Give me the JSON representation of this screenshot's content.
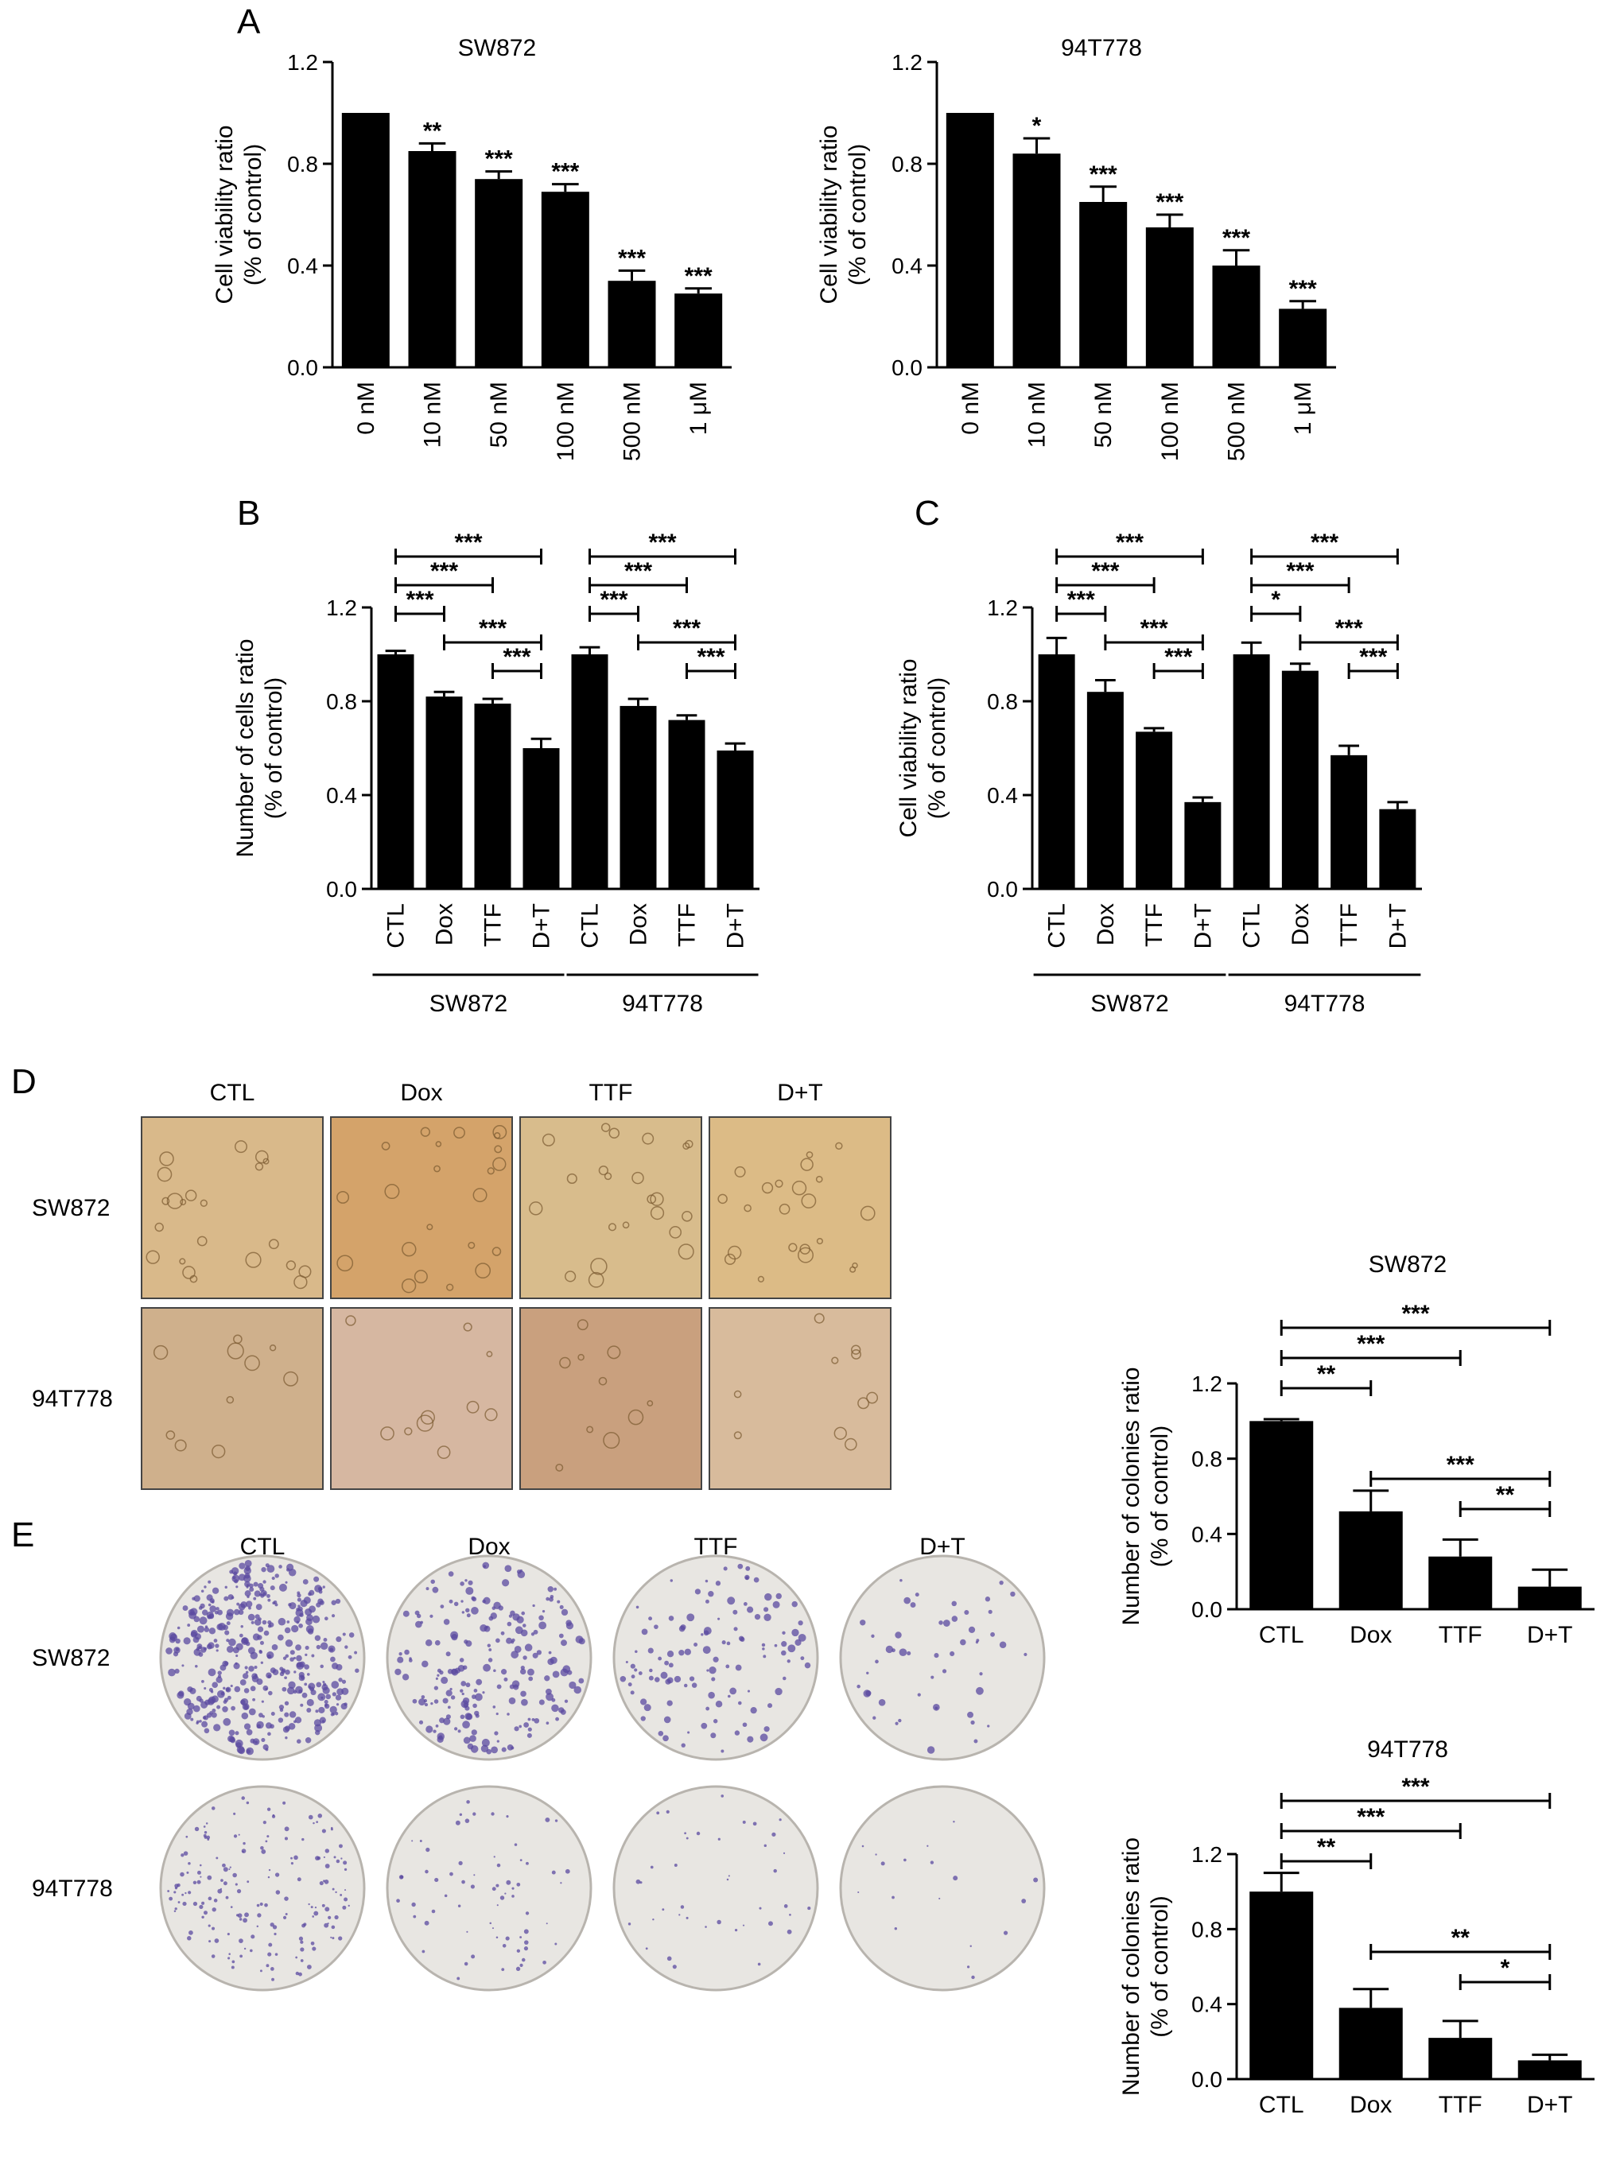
{
  "panels": {
    "A": "A",
    "B": "B",
    "C": "C",
    "D": "D",
    "E": "E"
  },
  "micrograph": {
    "columns": [
      "CTL",
      "Dox",
      "TTF",
      "D+T"
    ],
    "rows": [
      "SW872",
      "94T778"
    ],
    "colors": {
      "SW872": [
        "#d9b98a",
        "#d4a36a",
        "#d8bc8c",
        "#dcbb86"
      ],
      "94T778": [
        "#cfb08c",
        "#d6b7a1",
        "#c9a07e",
        "#d8bb9c"
      ]
    }
  },
  "dishes": {
    "columns": [
      "CTL",
      "Dox",
      "TTF",
      "D+T"
    ],
    "rows": [
      "SW872",
      "94T778"
    ],
    "dish_color": "#e8e6e2",
    "stain_color": "#5b4aa0",
    "colony_density": {
      "SW872": [
        1.0,
        0.52,
        0.28,
        0.12
      ],
      "94T778": [
        1.0,
        0.38,
        0.22,
        0.1
      ]
    }
  },
  "chart_data": [
    {
      "id": "A-left",
      "type": "bar",
      "title": "SW872",
      "ylabel": "Cell viability ratio\n(% of control)",
      "ylim": [
        0,
        1.2
      ],
      "yticks": [
        "0.0",
        "0.4",
        "0.8",
        "1.2"
      ],
      "ytick_values": [
        0,
        0.4,
        0.8,
        1.2
      ],
      "categories": [
        "0 nM",
        "10 nM",
        "50 nM",
        "100 nM",
        "500 nM",
        "1 μM"
      ],
      "values": [
        1.0,
        0.85,
        0.74,
        0.69,
        0.34,
        0.29
      ],
      "errors": [
        0.0,
        0.03,
        0.03,
        0.03,
        0.04,
        0.02
      ],
      "stars": [
        "",
        "**",
        "***",
        "***",
        "***",
        "***"
      ],
      "rotate_categories": true
    },
    {
      "id": "A-right",
      "type": "bar",
      "title": "94T778",
      "ylabel": "Cell viability ratio\n(% of control)",
      "ylim": [
        0,
        1.2
      ],
      "yticks": [
        "0.0",
        "0.4",
        "0.8",
        "1.2"
      ],
      "ytick_values": [
        0,
        0.4,
        0.8,
        1.2
      ],
      "categories": [
        "0 nM",
        "10 nM",
        "50 nM",
        "100 nM",
        "500 nM",
        "1 μM"
      ],
      "values": [
        1.0,
        0.84,
        0.65,
        0.55,
        0.4,
        0.23
      ],
      "errors": [
        0.0,
        0.06,
        0.06,
        0.05,
        0.06,
        0.03
      ],
      "stars": [
        "",
        "*",
        "***",
        "***",
        "***",
        "***"
      ],
      "rotate_categories": true
    },
    {
      "id": "B",
      "type": "bar",
      "ylabel": "Number of cells ratio\n(% of control)",
      "ylim": [
        0,
        1.2
      ],
      "yticks": [
        "0.0",
        "0.4",
        "0.8",
        "1.2"
      ],
      "ytick_values": [
        0,
        0.4,
        0.8,
        1.2
      ],
      "categories": [
        "CTL",
        "Dox",
        "TTF",
        "D+T",
        "CTL",
        "Dox",
        "TTF",
        "D+T"
      ],
      "values": [
        1.0,
        0.82,
        0.79,
        0.6,
        1.0,
        0.78,
        0.72,
        0.59
      ],
      "errors": [
        0.015,
        0.02,
        0.02,
        0.04,
        0.03,
        0.03,
        0.02,
        0.03
      ],
      "groups": [
        {
          "label": "SW872",
          "from": 0,
          "to": 3
        },
        {
          "label": "94T778",
          "from": 4,
          "to": 7
        }
      ],
      "brackets": [
        {
          "from": 0,
          "to": 1,
          "label": "***"
        },
        {
          "from": 0,
          "to": 2,
          "label": "***"
        },
        {
          "from": 0,
          "to": 3,
          "label": "***"
        },
        {
          "from": 1,
          "to": 3,
          "label": "***"
        },
        {
          "from": 2,
          "to": 3,
          "label": "***"
        },
        {
          "from": 4,
          "to": 5,
          "label": "***"
        },
        {
          "from": 4,
          "to": 6,
          "label": "***"
        },
        {
          "from": 4,
          "to": 7,
          "label": "***"
        },
        {
          "from": 5,
          "to": 7,
          "label": "***"
        },
        {
          "from": 6,
          "to": 7,
          "label": "***"
        }
      ],
      "rotate_categories": true
    },
    {
      "id": "C",
      "type": "bar",
      "ylabel": "Cell viability ratio\n(% of control)",
      "ylim": [
        0,
        1.2
      ],
      "yticks": [
        "0.0",
        "0.4",
        "0.8",
        "1.2"
      ],
      "ytick_values": [
        0,
        0.4,
        0.8,
        1.2
      ],
      "categories": [
        "CTL",
        "Dox",
        "TTF",
        "D+T",
        "CTL",
        "Dox",
        "TTF",
        "D+T"
      ],
      "values": [
        1.0,
        0.84,
        0.67,
        0.37,
        1.0,
        0.93,
        0.57,
        0.34
      ],
      "errors": [
        0.07,
        0.05,
        0.015,
        0.02,
        0.05,
        0.03,
        0.04,
        0.03
      ],
      "groups": [
        {
          "label": "SW872",
          "from": 0,
          "to": 3
        },
        {
          "label": "94T778",
          "from": 4,
          "to": 7
        }
      ],
      "brackets": [
        {
          "from": 0,
          "to": 1,
          "label": "***"
        },
        {
          "from": 0,
          "to": 2,
          "label": "***"
        },
        {
          "from": 0,
          "to": 3,
          "label": "***"
        },
        {
          "from": 1,
          "to": 3,
          "label": "***"
        },
        {
          "from": 2,
          "to": 3,
          "label": "***"
        },
        {
          "from": 4,
          "to": 5,
          "label": "*"
        },
        {
          "from": 4,
          "to": 6,
          "label": "***"
        },
        {
          "from": 4,
          "to": 7,
          "label": "***"
        },
        {
          "from": 5,
          "to": 7,
          "label": "***"
        },
        {
          "from": 6,
          "to": 7,
          "label": "***"
        }
      ],
      "rotate_categories": true
    },
    {
      "id": "E-top",
      "type": "bar",
      "title": "SW872",
      "ylabel": "Number of colonies ratio\n(% of control)",
      "ylim": [
        0,
        1.2
      ],
      "yticks": [
        "0.0",
        "0.4",
        "0.8",
        "1.2"
      ],
      "ytick_values": [
        0,
        0.4,
        0.8,
        1.2
      ],
      "categories": [
        "CTL",
        "Dox",
        "TTF",
        "D+T"
      ],
      "values": [
        1.0,
        0.52,
        0.28,
        0.12
      ],
      "errors": [
        0.01,
        0.11,
        0.09,
        0.09
      ],
      "brackets": [
        {
          "from": 0,
          "to": 1,
          "label": "**"
        },
        {
          "from": 0,
          "to": 2,
          "label": "***"
        },
        {
          "from": 0,
          "to": 3,
          "label": "***"
        },
        {
          "from": 1,
          "to": 3,
          "label": "***"
        },
        {
          "from": 2,
          "to": 3,
          "label": "**"
        }
      ],
      "rotate_categories": false
    },
    {
      "id": "E-bottom",
      "type": "bar",
      "title": "94T778",
      "ylabel": "Number of colonies ratio\n(% of control)",
      "ylim": [
        0,
        1.2
      ],
      "yticks": [
        "0.0",
        "0.4",
        "0.8",
        "1.2"
      ],
      "ytick_values": [
        0,
        0.4,
        0.8,
        1.2
      ],
      "categories": [
        "CTL",
        "Dox",
        "TTF",
        "D+T"
      ],
      "values": [
        1.0,
        0.38,
        0.22,
        0.1
      ],
      "errors": [
        0.1,
        0.1,
        0.09,
        0.03
      ],
      "brackets": [
        {
          "from": 0,
          "to": 1,
          "label": "**"
        },
        {
          "from": 0,
          "to": 2,
          "label": "***"
        },
        {
          "from": 0,
          "to": 3,
          "label": "***"
        },
        {
          "from": 1,
          "to": 3,
          "label": "**"
        },
        {
          "from": 2,
          "to": 3,
          "label": "*"
        }
      ],
      "rotate_categories": false
    }
  ]
}
